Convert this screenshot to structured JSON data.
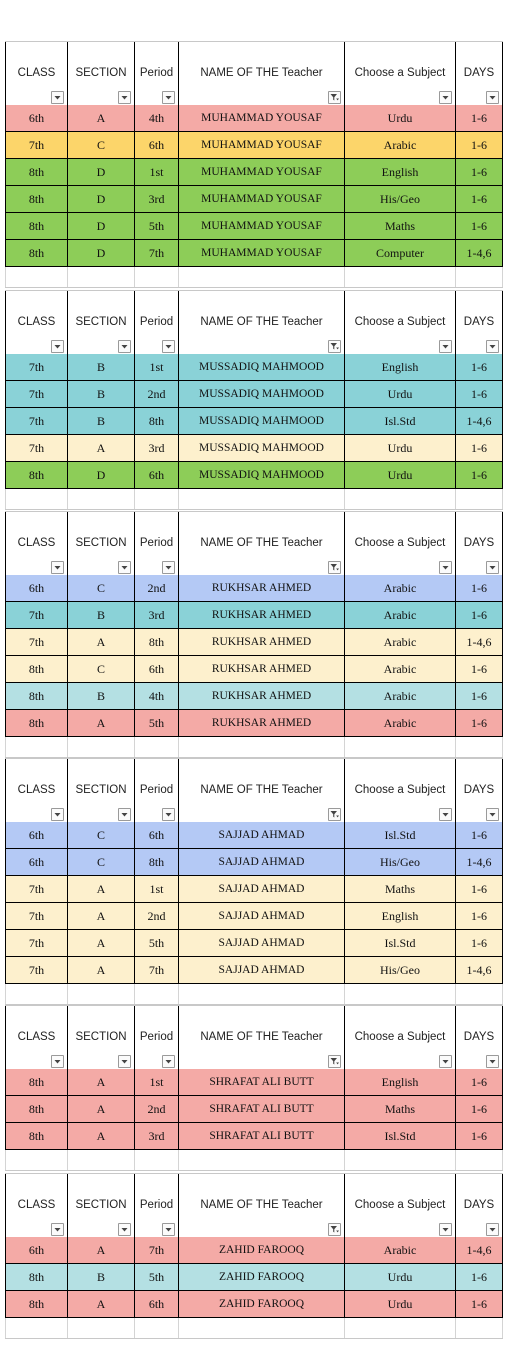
{
  "headers": [
    "CLASS",
    "SECTION",
    "Period",
    "NAME OF THE  Teacher",
    "Choose a Subject",
    "DAYS"
  ],
  "colors": {
    "pink": "#f4aaa6",
    "yellow": "#fcd56a",
    "green": "#8dcd58",
    "teal": "#8ad2d7",
    "cream": "#fdf0cd",
    "blue": "#b4c9f5",
    "lteal": "#b4e0e3"
  },
  "sections": [
    {
      "rows": [
        {
          "class": "6th",
          "section": "A",
          "period": "4th",
          "teacher": "MUHAMMAD YOUSAF",
          "subject": "Urdu",
          "days": "1-6",
          "color": "pink"
        },
        {
          "class": "7th",
          "section": "C",
          "period": "6th",
          "teacher": "MUHAMMAD YOUSAF",
          "subject": "Arabic",
          "days": "1-6",
          "color": "yellow"
        },
        {
          "class": "8th",
          "section": "D",
          "period": "1st",
          "teacher": "MUHAMMAD YOUSAF",
          "subject": "English",
          "days": "1-6",
          "color": "green"
        },
        {
          "class": "8th",
          "section": "D",
          "period": "3rd",
          "teacher": "MUHAMMAD YOUSAF",
          "subject": "His/Geo",
          "days": "1-6",
          "color": "green"
        },
        {
          "class": "8th",
          "section": "D",
          "period": "5th",
          "teacher": "MUHAMMAD YOUSAF",
          "subject": "Maths",
          "days": "1-6",
          "color": "green"
        },
        {
          "class": "8th",
          "section": "D",
          "period": "7th",
          "teacher": "MUHAMMAD YOUSAF",
          "subject": "Computer",
          "days": "1-4,6",
          "color": "green"
        }
      ]
    },
    {
      "rows": [
        {
          "class": "7th",
          "section": "B",
          "period": "1st",
          "teacher": "MUSSADIQ MAHMOOD",
          "subject": "English",
          "days": "1-6",
          "color": "teal"
        },
        {
          "class": "7th",
          "section": "B",
          "period": "2nd",
          "teacher": "MUSSADIQ MAHMOOD",
          "subject": "Urdu",
          "days": "1-6",
          "color": "teal"
        },
        {
          "class": "7th",
          "section": "B",
          "period": "8th",
          "teacher": "MUSSADIQ MAHMOOD",
          "subject": "Isl.Std",
          "days": "1-4,6",
          "color": "teal"
        },
        {
          "class": "7th",
          "section": "A",
          "period": "3rd",
          "teacher": "MUSSADIQ MAHMOOD",
          "subject": "Urdu",
          "days": "1-6",
          "color": "cream"
        },
        {
          "class": "8th",
          "section": "D",
          "period": "6th",
          "teacher": "MUSSADIQ MAHMOOD",
          "subject": "Urdu",
          "days": "1-6",
          "color": "green"
        }
      ]
    },
    {
      "rows": [
        {
          "class": "6th",
          "section": "C",
          "period": "2nd",
          "teacher": "RUKHSAR AHMED",
          "subject": "Arabic",
          "days": "1-6",
          "color": "blue"
        },
        {
          "class": "7th",
          "section": "B",
          "period": "3rd",
          "teacher": "RUKHSAR AHMED",
          "subject": "Arabic",
          "days": "1-6",
          "color": "teal"
        },
        {
          "class": "7th",
          "section": "A",
          "period": "8th",
          "teacher": "RUKHSAR AHMED",
          "subject": "Arabic",
          "days": "1-4,6",
          "color": "cream"
        },
        {
          "class": "8th",
          "section": "C",
          "period": "6th",
          "teacher": "RUKHSAR AHMED",
          "subject": "Arabic",
          "days": "1-6",
          "color": "cream"
        },
        {
          "class": "8th",
          "section": "B",
          "period": "4th",
          "teacher": "RUKHSAR AHMED",
          "subject": "Arabic",
          "days": "1-6",
          "color": "lteal"
        },
        {
          "class": "8th",
          "section": "A",
          "period": "5th",
          "teacher": "RUKHSAR AHMED",
          "subject": "Arabic",
          "days": "1-6",
          "color": "pink"
        }
      ]
    },
    {
      "rows": [
        {
          "class": "6th",
          "section": "C",
          "period": "6th",
          "teacher": "SAJJAD AHMAD",
          "subject": "Isl.Std",
          "days": "1-6",
          "color": "blue"
        },
        {
          "class": "6th",
          "section": "C",
          "period": "8th",
          "teacher": "SAJJAD AHMAD",
          "subject": "His/Geo",
          "days": "1-4,6",
          "color": "blue"
        },
        {
          "class": "7th",
          "section": "A",
          "period": "1st",
          "teacher": "SAJJAD AHMAD",
          "subject": "Maths",
          "days": "1-6",
          "color": "cream"
        },
        {
          "class": "7th",
          "section": "A",
          "period": "2nd",
          "teacher": "SAJJAD AHMAD",
          "subject": "English",
          "days": "1-6",
          "color": "cream"
        },
        {
          "class": "7th",
          "section": "A",
          "period": "5th",
          "teacher": "SAJJAD AHMAD",
          "subject": "Isl.Std",
          "days": "1-6",
          "color": "cream"
        },
        {
          "class": "7th",
          "section": "A",
          "period": "7th",
          "teacher": "SAJJAD AHMAD",
          "subject": "His/Geo",
          "days": "1-4,6",
          "color": "cream"
        }
      ]
    },
    {
      "rows": [
        {
          "class": "8th",
          "section": "A",
          "period": "1st",
          "teacher": "SHRAFAT ALI BUTT",
          "subject": "English",
          "days": "1-6",
          "color": "pink"
        },
        {
          "class": "8th",
          "section": "A",
          "period": "2nd",
          "teacher": "SHRAFAT ALI BUTT",
          "subject": "Maths",
          "days": "1-6",
          "color": "pink"
        },
        {
          "class": "8th",
          "section": "A",
          "period": "3rd",
          "teacher": "SHRAFAT ALI BUTT",
          "subject": "Isl.Std",
          "days": "1-6",
          "color": "pink"
        }
      ]
    },
    {
      "rows": [
        {
          "class": "6th",
          "section": "A",
          "period": "7th",
          "teacher": "ZAHID FAROOQ",
          "subject": "Arabic",
          "days": "1-4,6",
          "color": "pink"
        },
        {
          "class": "8th",
          "section": "B",
          "period": "5th",
          "teacher": "ZAHID FAROOQ",
          "subject": "Urdu",
          "days": "1-6",
          "color": "lteal"
        },
        {
          "class": "8th",
          "section": "A",
          "period": "6th",
          "teacher": "ZAHID FAROOQ",
          "subject": "Urdu",
          "days": "1-6",
          "color": "pink"
        }
      ]
    }
  ]
}
